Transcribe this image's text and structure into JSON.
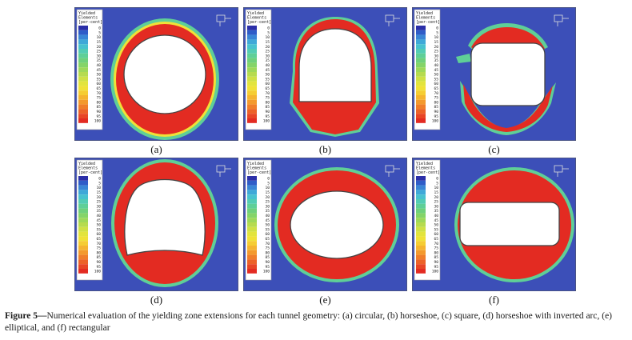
{
  "legend": {
    "title_lines": [
      "Yielded",
      "Elements",
      "[per-cent]"
    ],
    "ticks": [
      "0",
      "5",
      "10",
      "15",
      "20",
      "25",
      "30",
      "35",
      "40",
      "45",
      "50",
      "55",
      "60",
      "65",
      "70",
      "75",
      "80",
      "85",
      "90",
      "95",
      "100"
    ],
    "colors": [
      "#2b2fa8",
      "#2f5cc8",
      "#3a86d6",
      "#3fa8d8",
      "#48c2cf",
      "#53ccb4",
      "#5fcf97",
      "#6fd07c",
      "#84d468",
      "#9dd85a",
      "#b6db4f",
      "#cfe046",
      "#e2e43d",
      "#f0e137",
      "#f5cd33",
      "#f5b430",
      "#f39a2e",
      "#f07e2b",
      "#ec6228",
      "#e84525",
      "#e32b22"
    ]
  },
  "background_color": "#3c4fb8",
  "yield_color": "#e8241c",
  "panels": [
    {
      "label": "(a)"
    },
    {
      "label": "(b)"
    },
    {
      "label": "(c)"
    },
    {
      "label": "(d)"
    },
    {
      "label": "(e)"
    },
    {
      "label": "(f)"
    }
  ],
  "caption": {
    "label": "Figure 5—",
    "text": "Numerical evaluation of the yielding zone extensions for each tunnel geometry: (a) circular, (b) horseshoe, (c) square, (d) horseshoe with inverted arc, (e) elliptical, and (f) rectangular"
  }
}
